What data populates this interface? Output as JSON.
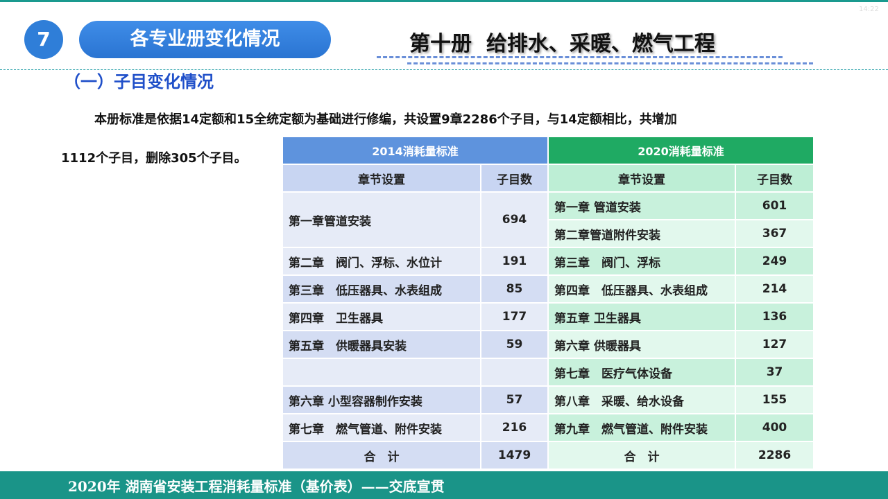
{
  "header": {
    "badge": "7",
    "section_title": "各专业册变化情况",
    "volume_title": "第十册  给排水、采暖、燃气工程",
    "page_number": "14:22"
  },
  "subtitle": "（一）子目变化情况",
  "paragraph": {
    "lines": [
      "本册标准是依据14定额和15全统定额为基础进行修编，共设置9章2286个子目，与14定额相比，共增加",
      "1112个子目，删除305个子目。"
    ]
  },
  "table": {
    "groups": [
      "2014消耗量标准",
      "2020消耗量标准"
    ],
    "headers": [
      "章节设置",
      "子目数",
      "章节设置",
      "子目数"
    ],
    "left_rows": [
      [
        "第一章管道安装",
        694
      ],
      [
        "第二章　阀门、浮标、水位计",
        191
      ],
      [
        "第三章　低压器具、水表组成",
        85
      ],
      [
        "第四章　卫生器具",
        177
      ],
      [
        "第五章　供暖器具安装",
        59
      ],
      [
        "第六章 小型容器制作安装",
        57
      ],
      [
        "第七章　燃气管道、附件安装",
        216
      ],
      [
        "合　计",
        1479
      ]
    ],
    "right_rows": [
      [
        "第一章 管道安装",
        601
      ],
      [
        "第二章管道附件安装",
        367
      ],
      [
        "第三章　阀门、浮标",
        249
      ],
      [
        "第四章　低压器具、水表组成",
        214
      ],
      [
        "第五章 卫生器具",
        136
      ],
      [
        "第六章 供暖器具",
        127
      ],
      [
        "第七章　医疗气体设备",
        37
      ],
      [
        "第八章　采暖、给水设备",
        155
      ],
      [
        "第九章　燃气管道、附件安装",
        400
      ],
      [
        "合　计",
        2286
      ]
    ]
  },
  "footer": "2020年 湖南省安装工程消耗量标准（基价表）——交底宣贯"
}
